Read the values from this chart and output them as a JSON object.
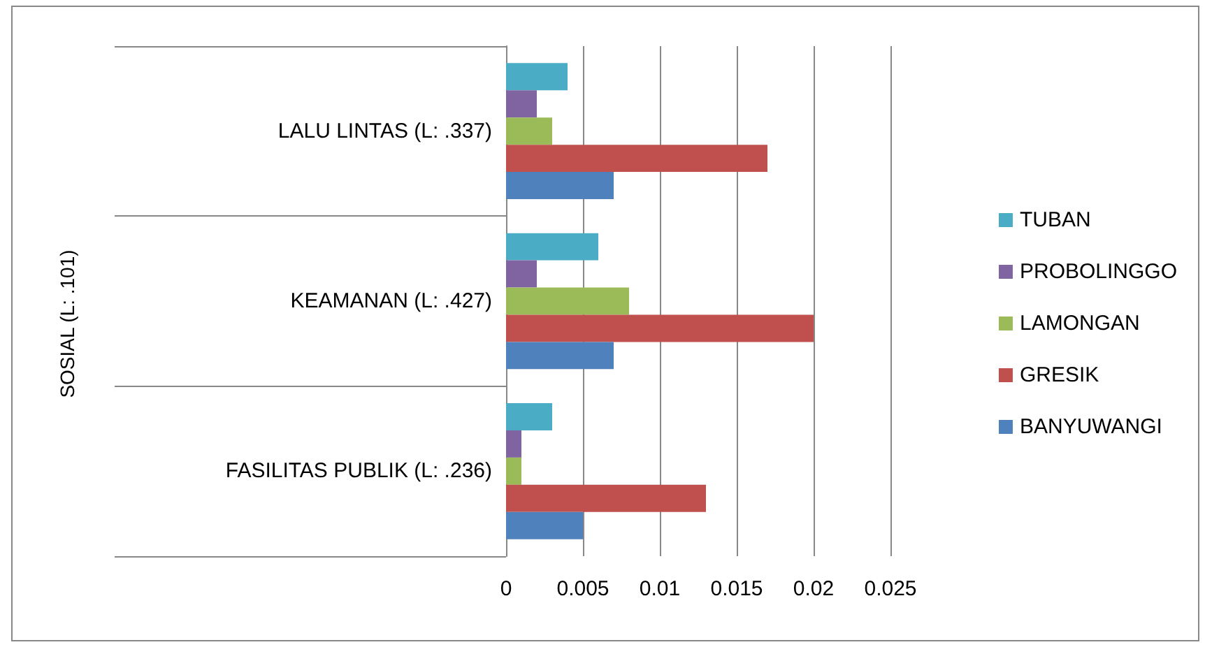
{
  "chart_data": {
    "type": "bar",
    "orientation": "horizontal",
    "annotations": [
      "SOSIAL (L: .101)"
    ],
    "categories": [
      "LALU LINTAS (L: .337)",
      "KEAMANAN (L: .427)",
      "FASILITAS PUBLIK (L: .236)"
    ],
    "series": [
      {
        "name": "TUBAN",
        "color": "#4bacc6",
        "values": [
          0.004,
          0.006,
          0.003
        ]
      },
      {
        "name": "PROBOLINGGO",
        "color": "#8064a2",
        "values": [
          0.002,
          0.002,
          0.001
        ]
      },
      {
        "name": "LAMONGAN",
        "color": "#9bbb59",
        "values": [
          0.003,
          0.008,
          0.001
        ]
      },
      {
        "name": "GRESIK",
        "color": "#c0504d",
        "values": [
          0.017,
          0.02,
          0.013
        ]
      },
      {
        "name": "BANYUWANGI",
        "color": "#4f81bd",
        "values": [
          0.007,
          0.007,
          0.005
        ]
      }
    ],
    "xlim": [
      0,
      0.025
    ],
    "xticks": [
      0,
      0.005,
      0.01,
      0.015,
      0.02,
      0.025
    ],
    "grid": "x",
    "legend": "right"
  }
}
